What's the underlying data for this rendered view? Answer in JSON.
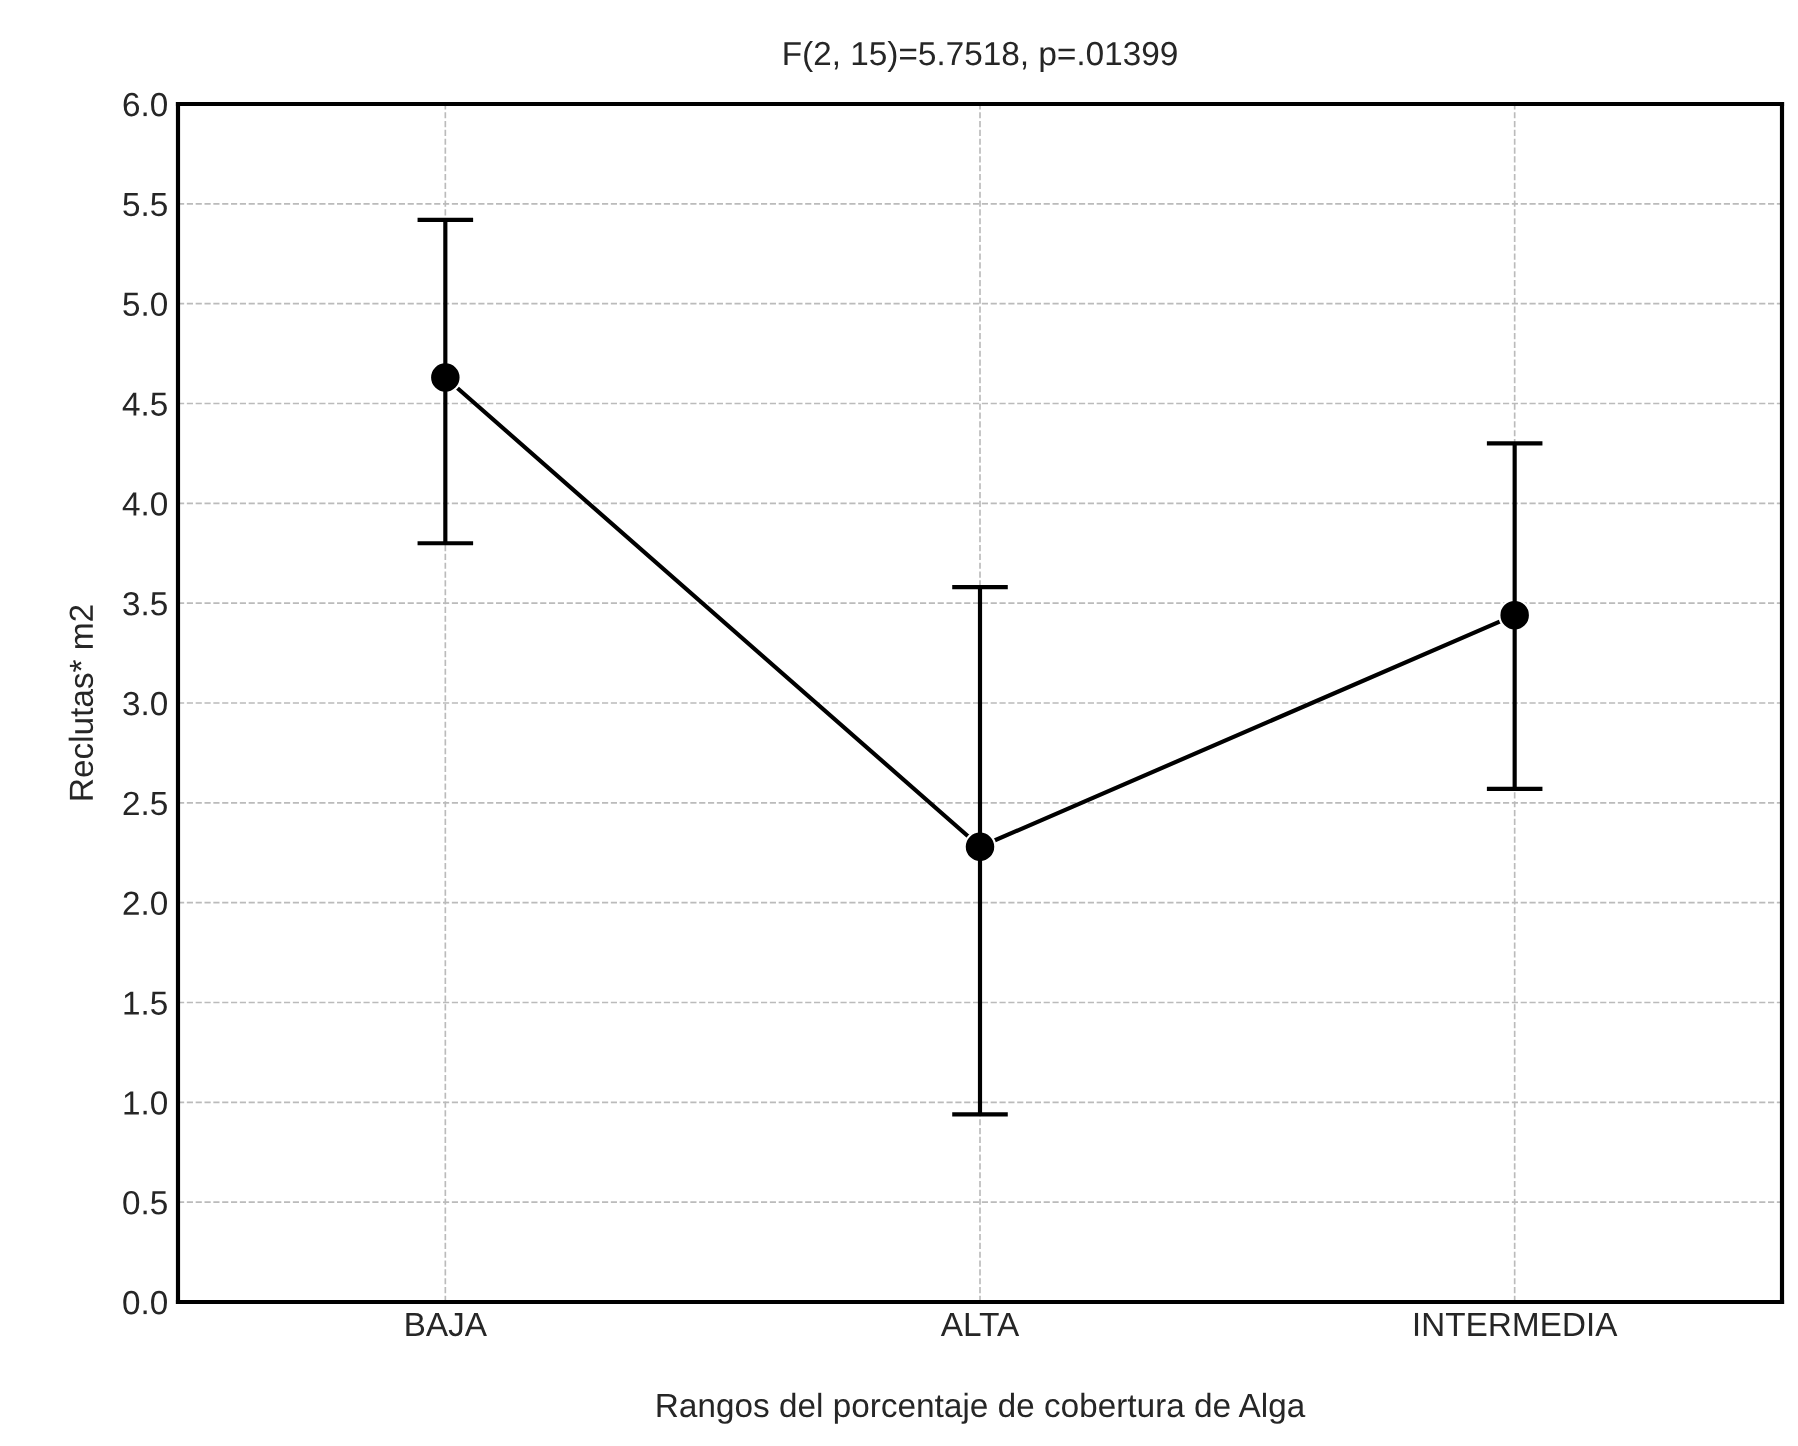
{
  "chart_data": {
    "type": "line",
    "title": "F(2, 15)=5.7518, p=.01399",
    "xlabel": "Rangos del porcentaje de cobertura de Alga",
    "ylabel": "Reclutas* m2",
    "categories": [
      "BAJA",
      "ALTA",
      "INTERMEDIA"
    ],
    "series": [
      {
        "color": "#000000",
        "values": [
          4.63,
          2.28,
          3.44
        ],
        "errors": [
          [
            3.8,
            5.42
          ],
          [
            0.94,
            3.58
          ],
          [
            2.57,
            4.3
          ]
        ]
      }
    ],
    "ylim": [
      0.0,
      6.0
    ],
    "yticks": [
      {
        "value": 0,
        "label": "0.0"
      },
      0.5,
      {
        "value": 1,
        "label": "1.0"
      },
      1.5,
      {
        "value": 2,
        "label": "2.0"
      },
      2.5,
      {
        "value": 3,
        "label": "3.0"
      },
      3.5,
      {
        "value": 4,
        "label": "4.0"
      },
      4.5,
      {
        "value": 5,
        "label": "5.0"
      },
      5.5,
      {
        "value": 6,
        "label": "6.0"
      }
    ],
    "grid": true,
    "marker": "circle",
    "line_style": "solid"
  }
}
